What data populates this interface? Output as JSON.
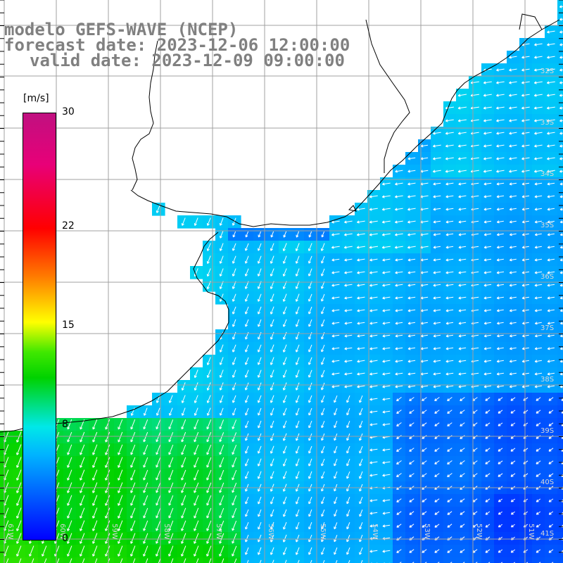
{
  "title": {
    "line1": "modelo GEFS-WAVE (NCEP)",
    "line2": "forecast date: 2023-12-06 12:00:00",
    "line3": "valid date: 2023-12-09 09:00:00"
  },
  "colorbar": {
    "unit": "[m/s]",
    "min": 0,
    "max": 30,
    "ticks": [
      {
        "value": 30,
        "label": "30"
      },
      {
        "value": 22,
        "label": "22"
      },
      {
        "value": 15,
        "label": "15"
      },
      {
        "value": 8,
        "label": "8"
      },
      {
        "value": 0,
        "label": "0"
      }
    ]
  },
  "map": {
    "field": "wind speed",
    "lat_labels": [
      "32S",
      "33S",
      "34S",
      "35S",
      "36S",
      "37S",
      "38S",
      "39S",
      "40S",
      "41S"
    ],
    "lon_labels": [
      "61W",
      "60W",
      "59W",
      "58W",
      "57W",
      "56W",
      "55W",
      "54W",
      "53W",
      "52W",
      "51W"
    ],
    "colors": {
      "land": "#ffffff",
      "grid": "#a0a0a0",
      "coast": "#000000",
      "arrow": "#ffffff"
    }
  }
}
